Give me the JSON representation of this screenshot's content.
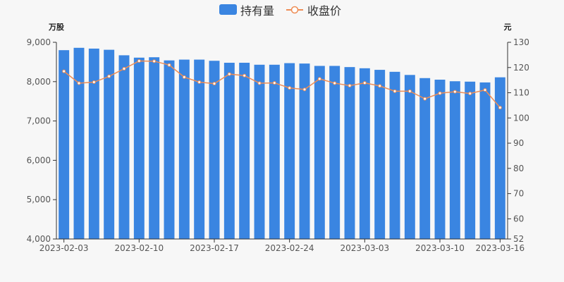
{
  "colors": {
    "bar": "#3a85e1",
    "line": "#ee8d55",
    "background": "#f7f7f7"
  },
  "chart_data": {
    "type": "bar",
    "legend": {
      "placement": "top-center",
      "items": [
        "持有量",
        "收盘价"
      ]
    },
    "x_axis_ticks": [
      "2023-02-03",
      "2023-02-10",
      "2023-02-17",
      "2023-02-24",
      "2023-03-03",
      "2023-03-10",
      "2023-03-16"
    ],
    "x_tick_indices": [
      0,
      5,
      10,
      15,
      20,
      25,
      29
    ],
    "left_axis": {
      "unit": "万股",
      "min": 4000,
      "max": 9000,
      "ticks": [
        "4,000",
        "5,000",
        "6,000",
        "7,000",
        "8,000",
        "9,000"
      ]
    },
    "right_axis": {
      "unit": "元",
      "min": 52,
      "max": 130,
      "ticks": [
        "52",
        "60",
        "70",
        "80",
        "90",
        "100",
        "110",
        "120",
        "130"
      ]
    },
    "series": [
      {
        "name": "持有量",
        "type": "bar",
        "axis": "left",
        "values": [
          8800,
          8860,
          8840,
          8810,
          8670,
          8610,
          8620,
          8540,
          8560,
          8560,
          8530,
          8480,
          8480,
          8430,
          8430,
          8470,
          8460,
          8400,
          8400,
          8370,
          8340,
          8300,
          8250,
          8170,
          8090,
          8050,
          8010,
          8000,
          7980,
          8110
        ]
      },
      {
        "name": "收盘价",
        "type": "line",
        "axis": "right",
        "values": [
          118.5,
          113.8,
          114.2,
          116.5,
          119.5,
          122.6,
          122.5,
          121.0,
          116.2,
          114.2,
          113.6,
          117.4,
          116.8,
          113.8,
          113.9,
          111.9,
          111.3,
          115.5,
          113.8,
          112.8,
          113.9,
          112.7,
          110.6,
          110.6,
          107.6,
          109.8,
          110.4,
          109.7,
          111.1,
          104.1
        ]
      }
    ]
  }
}
